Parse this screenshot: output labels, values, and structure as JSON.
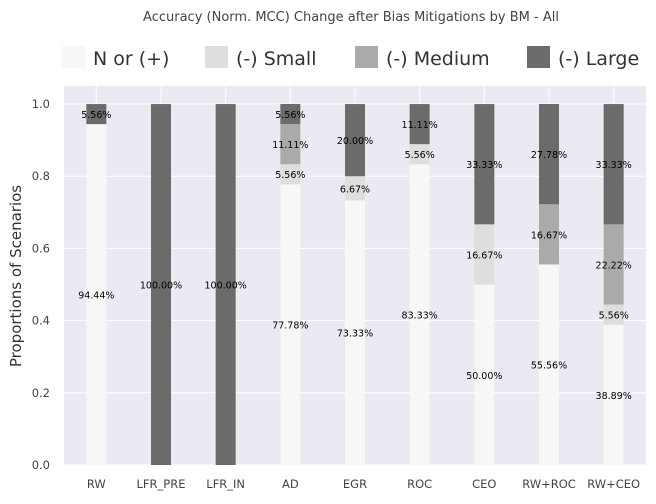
{
  "chart_data": {
    "type": "bar",
    "stacked": true,
    "title": "Accuracy (Norm. MCC) Change after Bias Mitigations by BM - All",
    "xlabel": "",
    "ylabel": "Proportions of Scenarios",
    "ylim": [
      0,
      1.05
    ],
    "yticks": [
      "0.0",
      "0.2",
      "0.4",
      "0.6",
      "0.8",
      "1.0"
    ],
    "grid": true,
    "legend_position": "top",
    "categories": [
      "RW",
      "LFR_PRE",
      "LFR_IN",
      "AD",
      "EGR",
      "ROC",
      "CEO",
      "RW+ROC",
      "RW+CEO"
    ],
    "series": [
      {
        "name": "N or (+)",
        "color": "#f7f7f7",
        "values": [
          0.9444,
          0,
          0,
          0.7778,
          0.7333,
          0.8333,
          0.5,
          0.5556,
          0.3889
        ],
        "labels": [
          "94.44%",
          "",
          "",
          "77.78%",
          "73.33%",
          "83.33%",
          "50.00%",
          "55.56%",
          "38.89%"
        ]
      },
      {
        "name": "(-) Small",
        "color": "#dedede",
        "values": [
          0,
          0,
          0,
          0.0556,
          0.0667,
          0.0556,
          0.1667,
          0,
          0.0556
        ],
        "labels": [
          "",
          "",
          "",
          "5.56%",
          "6.67%",
          "5.56%",
          "16.67%",
          "",
          "5.56%"
        ]
      },
      {
        "name": "(-) Medium",
        "color": "#aaaaaa",
        "values": [
          0,
          0,
          0,
          0.1111,
          0,
          0,
          0,
          0.1667,
          0.2222
        ],
        "labels": [
          "",
          "",
          "",
          "11.11%",
          "",
          "",
          "",
          "16.67%",
          "22.22%"
        ]
      },
      {
        "name": "(-) Large",
        "color": "#6b6b6b",
        "values": [
          0.0556,
          1.0,
          1.0,
          0.0556,
          0.2,
          0.1111,
          0.3333,
          0.2778,
          0.3333
        ],
        "labels": [
          "5.56%",
          "100.00%",
          "100.00%",
          "5.56%",
          "20.00%",
          "11.11%",
          "33.33%",
          "27.78%",
          "33.33%"
        ]
      }
    ]
  }
}
